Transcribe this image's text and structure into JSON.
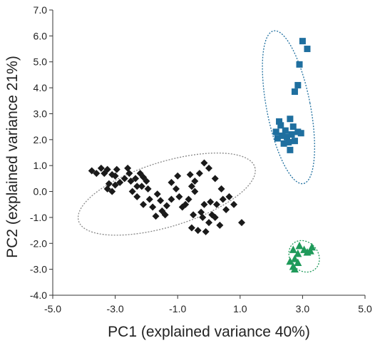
{
  "chart_data": {
    "type": "scatter",
    "title": "",
    "xlabel": "PC1 (explained variance 40%)",
    "ylabel": "PC2 (explained variance 21%)",
    "xlim": [
      -5.0,
      5.0
    ],
    "ylim": [
      -4.0,
      7.0
    ],
    "xticks": [
      "-5.0",
      "-3.0",
      "-1.0",
      "1.0",
      "3.0",
      "5.0"
    ],
    "yticks": [
      "-4.0",
      "-3.0",
      "-2.0",
      "-1.0",
      "0.0",
      "1.0",
      "2.0",
      "3.0",
      "4.0",
      "5.0",
      "6.0",
      "7.0"
    ],
    "grid": false,
    "legend": "none",
    "series": [
      {
        "marker": "diamond",
        "color": "#1a1a1a",
        "ellipse": {
          "cx": -1.35,
          "cy": -0.1,
          "rx": 2.95,
          "ry": 1.25,
          "angle_deg": -17
        },
        "points": [
          [
            -3.75,
            0.8
          ],
          [
            -3.6,
            0.7
          ],
          [
            -3.45,
            0.9
          ],
          [
            -3.35,
            0.7
          ],
          [
            -3.25,
            0.85
          ],
          [
            -3.1,
            0.65
          ],
          [
            -3.0,
            0.6
          ],
          [
            -2.95,
            0.85
          ],
          [
            -3.2,
            0.3
          ],
          [
            -3.1,
            0.0
          ],
          [
            -3.25,
            0.1
          ],
          [
            -3.0,
            0.25
          ],
          [
            -2.6,
            0.9
          ],
          [
            -2.55,
            0.7
          ],
          [
            -2.7,
            0.5
          ],
          [
            -2.5,
            0.4
          ],
          [
            -2.35,
            0.5
          ],
          [
            -2.3,
            0.2
          ],
          [
            -2.45,
            0.0
          ],
          [
            -2.2,
            0.7
          ],
          [
            -2.1,
            0.55
          ],
          [
            -2.15,
            0.2
          ],
          [
            -2.0,
            0.4
          ],
          [
            -1.95,
            0.1
          ],
          [
            -2.3,
            -0.2
          ],
          [
            -2.1,
            -0.5
          ],
          [
            -1.9,
            -0.3
          ],
          [
            -1.8,
            -0.6
          ],
          [
            -1.65,
            -0.1
          ],
          [
            -1.55,
            -0.35
          ],
          [
            -1.5,
            -0.75
          ],
          [
            -1.4,
            -0.9
          ],
          [
            -1.7,
            -0.95
          ],
          [
            -1.35,
            -0.55
          ],
          [
            -1.2,
            -0.3
          ],
          [
            -1.05,
            0.1
          ],
          [
            -1.2,
            0.35
          ],
          [
            -0.95,
            -0.2
          ],
          [
            -0.85,
            -0.6
          ],
          [
            -0.75,
            -0.5
          ],
          [
            -0.65,
            -0.3
          ],
          [
            -0.55,
            0.2
          ],
          [
            -0.45,
            0.4
          ],
          [
            -0.5,
            -0.9
          ],
          [
            -0.55,
            -1.4
          ],
          [
            -0.35,
            -1.5
          ],
          [
            -0.25,
            -0.8
          ],
          [
            -0.2,
            -1.0
          ],
          [
            -0.15,
            -0.5
          ],
          [
            -0.1,
            -1.55
          ],
          [
            0.0,
            -1.2
          ],
          [
            0.05,
            -0.4
          ],
          [
            0.1,
            -0.9
          ],
          [
            0.2,
            -1.0
          ],
          [
            0.25,
            -0.5
          ],
          [
            0.35,
            -1.3
          ],
          [
            0.45,
            -0.3
          ],
          [
            0.55,
            -0.7
          ],
          [
            0.4,
            0.1
          ],
          [
            0.2,
            0.5
          ],
          [
            0.0,
            0.9
          ],
          [
            -0.15,
            1.1
          ],
          [
            -0.3,
            0.7
          ],
          [
            -0.6,
            0.65
          ],
          [
            0.65,
            -0.2
          ],
          [
            0.8,
            -0.5
          ],
          [
            1.05,
            -1.2
          ],
          [
            -0.45,
            0.0
          ],
          [
            -1.0,
            0.6
          ],
          [
            -2.85,
            0.35
          ]
        ]
      },
      {
        "marker": "square",
        "color": "#1f6f9f",
        "ellipse": {
          "cx": 2.55,
          "cy": 3.25,
          "rx": 0.7,
          "ry": 3.0,
          "angle_deg": -11
        },
        "points": [
          [
            3.0,
            5.8
          ],
          [
            3.15,
            5.5
          ],
          [
            2.9,
            4.9
          ],
          [
            2.85,
            4.1
          ],
          [
            2.75,
            3.85
          ],
          [
            2.6,
            2.8
          ],
          [
            2.15,
            2.3
          ],
          [
            2.2,
            2.05
          ],
          [
            2.3,
            2.55
          ],
          [
            2.35,
            2.15
          ],
          [
            2.45,
            2.35
          ],
          [
            2.5,
            2.1
          ],
          [
            2.55,
            1.9
          ],
          [
            2.65,
            2.2
          ],
          [
            2.75,
            1.95
          ],
          [
            2.6,
            1.6
          ],
          [
            2.85,
            2.3
          ],
          [
            2.95,
            2.25
          ],
          [
            2.4,
            1.85
          ],
          [
            2.7,
            2.5
          ],
          [
            2.25,
            2.7
          ]
        ]
      },
      {
        "marker": "triangle",
        "color": "#1f9a5a",
        "ellipse": {
          "cx": 3.05,
          "cy": -2.5,
          "rx": 0.45,
          "ry": 0.65,
          "angle_deg": -40
        },
        "points": [
          [
            2.7,
            -2.25
          ],
          [
            2.85,
            -2.4
          ],
          [
            3.05,
            -2.25
          ],
          [
            3.25,
            -2.3
          ],
          [
            3.3,
            -2.15
          ],
          [
            2.75,
            -2.6
          ],
          [
            2.6,
            -2.7
          ],
          [
            2.7,
            -2.9
          ],
          [
            2.85,
            -2.75
          ],
          [
            2.75,
            -3.0
          ],
          [
            2.9,
            -2.1
          ],
          [
            3.15,
            -2.35
          ]
        ]
      }
    ]
  }
}
